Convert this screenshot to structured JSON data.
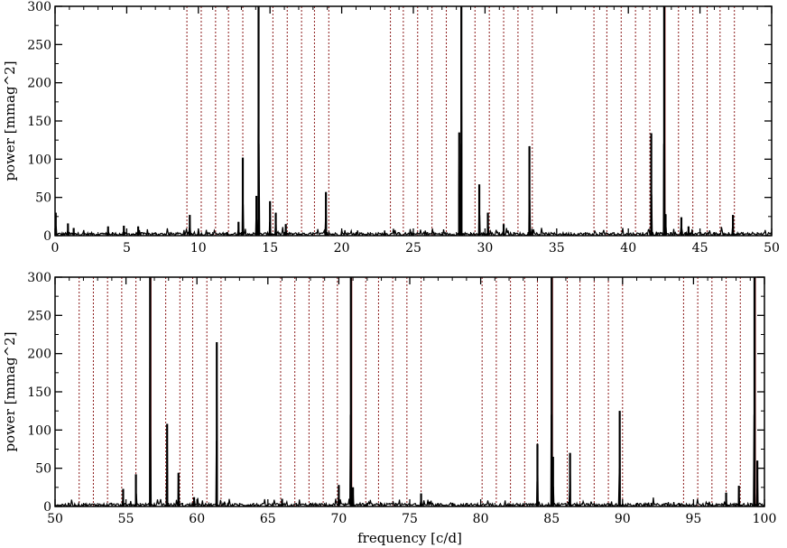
{
  "chart_data": [
    {
      "type": "line",
      "title": "",
      "xlabel": "",
      "ylabel": "power [mmag^2]",
      "xlim": [
        0,
        50
      ],
      "ylim": [
        0,
        300
      ],
      "xticks": [
        0,
        5,
        10,
        15,
        20,
        25,
        30,
        35,
        40,
        45,
        50
      ],
      "xtick_labels": [
        "0",
        "5",
        "10",
        "15",
        "20",
        "25",
        "30",
        "35",
        "40",
        "45",
        "50"
      ],
      "yticks": [
        0,
        50,
        100,
        150,
        200,
        250,
        300
      ],
      "ytick_labels": [
        "0",
        "50",
        "100",
        "150",
        "200",
        "250",
        "300"
      ],
      "grid": false,
      "series_color": "#000000",
      "peaks": [
        {
          "x": 0.05,
          "y": 30
        },
        {
          "x": 0.9,
          "y": 16
        },
        {
          "x": 1.3,
          "y": 10
        },
        {
          "x": 3.7,
          "y": 12
        },
        {
          "x": 4.8,
          "y": 13
        },
        {
          "x": 5.8,
          "y": 12
        },
        {
          "x": 9.4,
          "y": 27
        },
        {
          "x": 12.8,
          "y": 18
        },
        {
          "x": 13.1,
          "y": 102
        },
        {
          "x": 14.05,
          "y": 52
        },
        {
          "x": 14.2,
          "y": 300
        },
        {
          "x": 15.0,
          "y": 45
        },
        {
          "x": 15.4,
          "y": 30
        },
        {
          "x": 16.1,
          "y": 15
        },
        {
          "x": 18.9,
          "y": 57
        },
        {
          "x": 28.2,
          "y": 135
        },
        {
          "x": 28.35,
          "y": 300
        },
        {
          "x": 29.6,
          "y": 67
        },
        {
          "x": 30.2,
          "y": 30
        },
        {
          "x": 31.3,
          "y": 15
        },
        {
          "x": 33.1,
          "y": 117
        },
        {
          "x": 41.6,
          "y": 134
        },
        {
          "x": 42.5,
          "y": 300
        },
        {
          "x": 42.6,
          "y": 28
        },
        {
          "x": 43.7,
          "y": 24
        },
        {
          "x": 44.2,
          "y": 12
        },
        {
          "x": 47.3,
          "y": 27
        }
      ],
      "vlines_solid": [
        14.2,
        28.35,
        42.55
      ],
      "vlines_dotted": [
        9.2,
        10.2,
        11.2,
        12.1,
        13.1,
        15.2,
        16.2,
        17.2,
        18.1,
        19.1,
        23.4,
        24.3,
        25.3,
        26.3,
        27.3,
        29.3,
        30.3,
        31.3,
        32.3,
        33.3,
        37.6,
        38.5,
        39.5,
        40.5,
        41.5,
        43.5,
        44.5,
        45.5,
        46.4,
        47.4
      ],
      "vline_color": "#8b1a1a"
    },
    {
      "type": "line",
      "title": "",
      "xlabel": "frequency [c/d]",
      "ylabel": "power [mmag^2]",
      "xlim": [
        50,
        100
      ],
      "ylim": [
        0,
        300
      ],
      "xticks": [
        50,
        55,
        60,
        65,
        70,
        75,
        80,
        85,
        90,
        95,
        100
      ],
      "xtick_labels": [
        "50",
        "55",
        "60",
        "65",
        "70",
        "75",
        "80",
        "85",
        "90",
        "95",
        "100"
      ],
      "yticks": [
        0,
        50,
        100,
        150,
        200,
        250,
        300
      ],
      "ytick_labels": [
        "0",
        "50",
        "100",
        "150",
        "200",
        "250",
        "300"
      ],
      "grid": false,
      "series_color": "#000000",
      "peaks": [
        {
          "x": 54.8,
          "y": 23
        },
        {
          "x": 55.7,
          "y": 42
        },
        {
          "x": 56.7,
          "y": 300
        },
        {
          "x": 57.9,
          "y": 108
        },
        {
          "x": 58.7,
          "y": 44
        },
        {
          "x": 59.8,
          "y": 12
        },
        {
          "x": 61.4,
          "y": 215
        },
        {
          "x": 66.0,
          "y": 10
        },
        {
          "x": 70.0,
          "y": 28
        },
        {
          "x": 70.85,
          "y": 300
        },
        {
          "x": 71.0,
          "y": 25
        },
        {
          "x": 75.8,
          "y": 17
        },
        {
          "x": 84.0,
          "y": 82
        },
        {
          "x": 85.0,
          "y": 300
        },
        {
          "x": 85.1,
          "y": 65
        },
        {
          "x": 86.3,
          "y": 70
        },
        {
          "x": 89.8,
          "y": 125
        },
        {
          "x": 97.3,
          "y": 18
        },
        {
          "x": 98.2,
          "y": 27
        },
        {
          "x": 99.3,
          "y": 300
        },
        {
          "x": 99.5,
          "y": 60
        }
      ],
      "vlines_solid": [
        56.75,
        70.9,
        85.05,
        99.35
      ],
      "vlines_dotted": [
        51.7,
        52.7,
        53.7,
        54.7,
        55.7,
        57.8,
        58.8,
        59.7,
        60.7,
        61.7,
        65.9,
        66.9,
        67.9,
        68.9,
        69.9,
        71.9,
        72.8,
        73.8,
        74.8,
        75.8,
        80.1,
        81.1,
        82.1,
        83.1,
        84.0,
        86.1,
        87.0,
        88.0,
        89.0,
        90.0,
        94.3,
        95.3,
        96.3,
        97.3,
        98.3
      ],
      "vline_color": "#8b1a1a"
    }
  ]
}
